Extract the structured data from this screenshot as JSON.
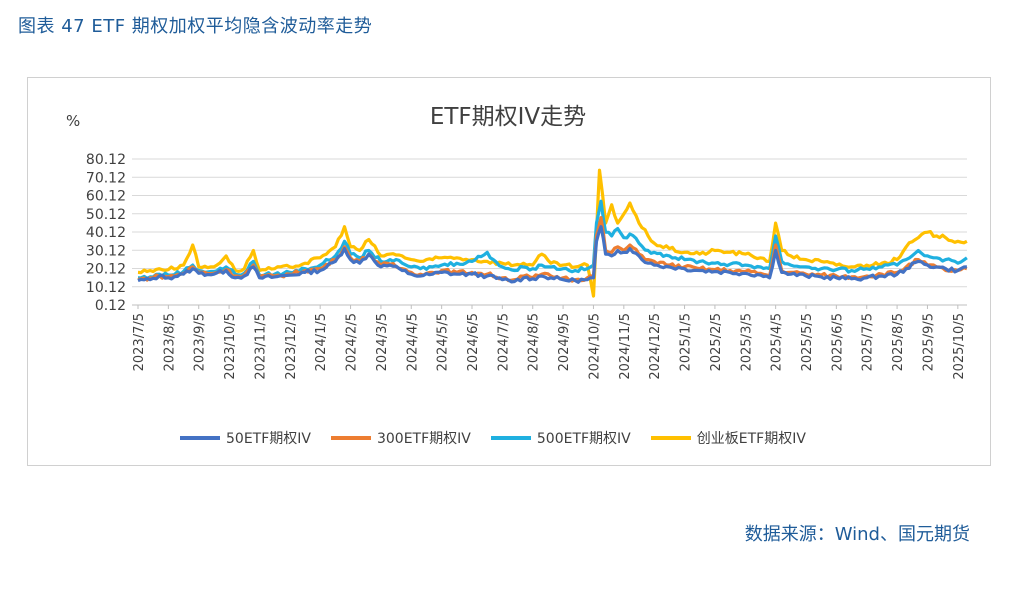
{
  "header": {
    "figure_title": "图表 47 ETF 期权加权平均隐含波动率走势"
  },
  "footer": {
    "source": "数据来源：Wind、国元期货"
  },
  "chart_data": {
    "type": "line",
    "title": "ETF期权IV走势",
    "ylabel": "%",
    "xlabel": "",
    "ylim": [
      0.12,
      80.12
    ],
    "yticks": [
      "80.12",
      "70.12",
      "60.12",
      "50.12",
      "40.12",
      "30.12",
      "20.12",
      "10.12",
      "0.12"
    ],
    "ytick_values": [
      80.12,
      70.12,
      60.12,
      50.12,
      40.12,
      30.12,
      20.12,
      10.12,
      0.12
    ],
    "categories": [
      "2023/7/5",
      "2023/8/5",
      "2023/9/5",
      "2023/10/5",
      "2023/11/5",
      "2023/12/5",
      "2024/1/5",
      "2024/2/5",
      "2024/3/5",
      "2024/4/5",
      "2024/5/5",
      "2024/6/5",
      "2024/7/5",
      "2024/8/5",
      "2024/9/5",
      "2024/10/5",
      "2024/11/5",
      "2024/12/5",
      "2025/1/5",
      "2025/2/5",
      "2025/3/5",
      "2025/4/5",
      "2025/5/5",
      "2025/6/5",
      "2025/7/5",
      "2025/8/5",
      "2025/9/5",
      "2025/10/5"
    ],
    "series": [
      {
        "name": "50ETF期权IV",
        "color": "#4472c4",
        "points": [
          [
            0,
            13.5
          ],
          [
            0.4,
            14
          ],
          [
            0.7,
            16
          ],
          [
            1,
            15
          ],
          [
            1.5,
            17
          ],
          [
            1.8,
            20
          ],
          [
            2,
            17.5
          ],
          [
            2.5,
            17
          ],
          [
            2.9,
            19
          ],
          [
            3.2,
            15
          ],
          [
            3.5,
            16
          ],
          [
            3.8,
            21
          ],
          [
            4,
            15
          ],
          [
            4.5,
            15.5
          ],
          [
            5,
            16.5
          ],
          [
            5.5,
            18
          ],
          [
            6,
            19
          ],
          [
            6.5,
            24
          ],
          [
            6.8,
            31
          ],
          [
            7,
            25
          ],
          [
            7.3,
            23
          ],
          [
            7.6,
            28
          ],
          [
            8,
            21
          ],
          [
            8.3,
            22
          ],
          [
            8.7,
            19
          ],
          [
            9,
            17
          ],
          [
            9.3,
            16
          ],
          [
            9.7,
            17
          ],
          [
            10,
            18
          ],
          [
            10.5,
            17
          ],
          [
            11,
            17
          ],
          [
            11.5,
            16
          ],
          [
            12,
            14
          ],
          [
            12.4,
            13
          ],
          [
            12.7,
            15
          ],
          [
            13,
            14.5
          ],
          [
            13.3,
            16
          ],
          [
            13.6,
            15
          ],
          [
            14,
            14
          ],
          [
            14.4,
            13.5
          ],
          [
            14.8,
            14
          ],
          [
            15,
            15
          ],
          [
            15.1,
            35
          ],
          [
            15.25,
            43
          ],
          [
            15.4,
            28
          ],
          [
            15.6,
            27
          ],
          [
            15.8,
            30
          ],
          [
            16,
            29
          ],
          [
            16.2,
            31
          ],
          [
            16.5,
            27
          ],
          [
            16.8,
            23
          ],
          [
            17,
            22
          ],
          [
            17.5,
            21
          ],
          [
            18,
            20
          ],
          [
            18.5,
            19
          ],
          [
            19,
            18.5
          ],
          [
            19.5,
            18
          ],
          [
            20,
            17.5
          ],
          [
            20.5,
            16.5
          ],
          [
            20.8,
            15
          ],
          [
            21,
            30
          ],
          [
            21.2,
            18
          ],
          [
            21.5,
            17
          ],
          [
            22,
            16
          ],
          [
            22.5,
            15.5
          ],
          [
            23,
            15
          ],
          [
            23.5,
            14.5
          ],
          [
            24,
            15
          ],
          [
            24.5,
            16
          ],
          [
            25,
            17
          ],
          [
            25.3,
            20
          ],
          [
            25.7,
            24
          ],
          [
            26,
            22
          ],
          [
            26.3,
            21
          ],
          [
            26.6,
            20
          ],
          [
            27,
            19
          ],
          [
            27.3,
            21
          ]
        ]
      },
      {
        "name": "300ETF期权IV",
        "color": "#ed7d31",
        "points": [
          [
            0,
            14
          ],
          [
            0.4,
            15
          ],
          [
            0.7,
            16
          ],
          [
            1,
            15.5
          ],
          [
            1.5,
            17.5
          ],
          [
            1.8,
            21
          ],
          [
            2,
            18
          ],
          [
            2.5,
            17.5
          ],
          [
            2.9,
            19.5
          ],
          [
            3.2,
            16
          ],
          [
            3.5,
            16.5
          ],
          [
            3.8,
            22
          ],
          [
            4,
            15.5
          ],
          [
            4.5,
            16
          ],
          [
            5,
            17
          ],
          [
            5.5,
            19
          ],
          [
            6,
            20
          ],
          [
            6.5,
            25
          ],
          [
            6.8,
            32
          ],
          [
            7,
            26
          ],
          [
            7.3,
            24
          ],
          [
            7.6,
            28
          ],
          [
            8,
            22
          ],
          [
            8.3,
            22.5
          ],
          [
            8.7,
            20
          ],
          [
            9,
            18
          ],
          [
            9.3,
            17
          ],
          [
            9.7,
            18
          ],
          [
            10,
            19
          ],
          [
            10.5,
            18
          ],
          [
            11,
            18
          ],
          [
            11.5,
            17
          ],
          [
            12,
            15
          ],
          [
            12.4,
            14
          ],
          [
            12.7,
            16
          ],
          [
            13,
            15
          ],
          [
            13.3,
            17
          ],
          [
            13.6,
            16
          ],
          [
            14,
            15
          ],
          [
            14.4,
            14
          ],
          [
            14.8,
            15
          ],
          [
            15,
            16
          ],
          [
            15.1,
            38
          ],
          [
            15.25,
            48
          ],
          [
            15.4,
            30
          ],
          [
            15.6,
            29
          ],
          [
            15.8,
            32
          ],
          [
            16,
            30
          ],
          [
            16.2,
            33
          ],
          [
            16.5,
            28
          ],
          [
            16.8,
            25
          ],
          [
            17,
            24
          ],
          [
            17.5,
            22
          ],
          [
            18,
            21
          ],
          [
            18.5,
            20
          ],
          [
            19,
            19.5
          ],
          [
            19.5,
            19
          ],
          [
            20,
            18.5
          ],
          [
            20.5,
            17.5
          ],
          [
            20.8,
            16
          ],
          [
            21,
            33
          ],
          [
            21.2,
            19
          ],
          [
            21.5,
            18
          ],
          [
            22,
            17
          ],
          [
            22.5,
            16.5
          ],
          [
            23,
            16
          ],
          [
            23.5,
            15.5
          ],
          [
            24,
            16
          ],
          [
            24.5,
            17
          ],
          [
            25,
            18
          ],
          [
            25.3,
            21
          ],
          [
            25.7,
            25
          ],
          [
            26,
            22
          ],
          [
            26.3,
            21
          ],
          [
            26.6,
            19
          ],
          [
            27,
            19
          ],
          [
            27.3,
            20
          ]
        ]
      },
      {
        "name": "500ETF期权IV",
        "color": "#1fb0e0",
        "points": [
          [
            0,
            15
          ],
          [
            0.4,
            15.5
          ],
          [
            0.7,
            17
          ],
          [
            1,
            16.5
          ],
          [
            1.5,
            18.5
          ],
          [
            1.8,
            22
          ],
          [
            2,
            19
          ],
          [
            2.5,
            18.5
          ],
          [
            2.9,
            21
          ],
          [
            3.2,
            17
          ],
          [
            3.5,
            17.5
          ],
          [
            3.8,
            24
          ],
          [
            4,
            16.5
          ],
          [
            4.5,
            17
          ],
          [
            5,
            18
          ],
          [
            5.5,
            20
          ],
          [
            6,
            22
          ],
          [
            6.5,
            27
          ],
          [
            6.8,
            35
          ],
          [
            7,
            28
          ],
          [
            7.3,
            26
          ],
          [
            7.6,
            30
          ],
          [
            8,
            24
          ],
          [
            8.3,
            25
          ],
          [
            8.7,
            23
          ],
          [
            9,
            21
          ],
          [
            9.3,
            20
          ],
          [
            9.7,
            21
          ],
          [
            10,
            22
          ],
          [
            10.5,
            23
          ],
          [
            11,
            24
          ],
          [
            11.5,
            29
          ],
          [
            11.7,
            25
          ],
          [
            12,
            21
          ],
          [
            12.4,
            19
          ],
          [
            12.7,
            21
          ],
          [
            13,
            20
          ],
          [
            13.3,
            22
          ],
          [
            13.6,
            21
          ],
          [
            14,
            20
          ],
          [
            14.4,
            19
          ],
          [
            14.8,
            20
          ],
          [
            15,
            22
          ],
          [
            15.1,
            45
          ],
          [
            15.25,
            57
          ],
          [
            15.4,
            40
          ],
          [
            15.6,
            38
          ],
          [
            15.8,
            42
          ],
          [
            16,
            37
          ],
          [
            16.2,
            39
          ],
          [
            16.5,
            34
          ],
          [
            16.8,
            30
          ],
          [
            17,
            29
          ],
          [
            17.5,
            27
          ],
          [
            18,
            25
          ],
          [
            18.5,
            24
          ],
          [
            19,
            23
          ],
          [
            19.5,
            22.5
          ],
          [
            20,
            22
          ],
          [
            20.5,
            21
          ],
          [
            20.8,
            20
          ],
          [
            21,
            38
          ],
          [
            21.2,
            24
          ],
          [
            21.5,
            22
          ],
          [
            22,
            21
          ],
          [
            22.5,
            20
          ],
          [
            23,
            19.5
          ],
          [
            23.5,
            19
          ],
          [
            24,
            20
          ],
          [
            24.5,
            21
          ],
          [
            25,
            22
          ],
          [
            25.3,
            25
          ],
          [
            25.7,
            30
          ],
          [
            26,
            27
          ],
          [
            26.3,
            26
          ],
          [
            26.6,
            25
          ],
          [
            27,
            23
          ],
          [
            27.3,
            26
          ]
        ]
      },
      {
        "name": "创业板ETF期权IV",
        "color": "#ffc000",
        "points": [
          [
            0,
            18
          ],
          [
            0.4,
            19
          ],
          [
            0.7,
            20
          ],
          [
            1,
            19.5
          ],
          [
            1.5,
            22
          ],
          [
            1.8,
            33
          ],
          [
            2,
            21
          ],
          [
            2.5,
            21
          ],
          [
            2.9,
            27
          ],
          [
            3.2,
            19
          ],
          [
            3.5,
            20
          ],
          [
            3.8,
            30
          ],
          [
            4,
            19
          ],
          [
            4.5,
            20
          ],
          [
            5,
            21
          ],
          [
            5.5,
            23
          ],
          [
            6,
            26
          ],
          [
            6.5,
            32
          ],
          [
            6.8,
            43
          ],
          [
            7,
            32
          ],
          [
            7.3,
            30
          ],
          [
            7.6,
            36
          ],
          [
            8,
            27
          ],
          [
            8.3,
            28
          ],
          [
            8.7,
            27
          ],
          [
            9,
            25
          ],
          [
            9.3,
            24
          ],
          [
            9.7,
            25
          ],
          [
            10,
            26
          ],
          [
            10.5,
            26
          ],
          [
            11,
            25
          ],
          [
            11.5,
            24
          ],
          [
            12,
            23
          ],
          [
            12.4,
            22
          ],
          [
            12.7,
            23
          ],
          [
            13,
            22
          ],
          [
            13.3,
            28
          ],
          [
            13.6,
            23
          ],
          [
            14,
            22
          ],
          [
            14.4,
            21
          ],
          [
            14.8,
            22
          ],
          [
            15,
            5
          ],
          [
            15.1,
            40
          ],
          [
            15.2,
            74
          ],
          [
            15.4,
            45
          ],
          [
            15.6,
            55
          ],
          [
            15.8,
            45
          ],
          [
            16,
            50
          ],
          [
            16.2,
            56
          ],
          [
            16.5,
            45
          ],
          [
            16.8,
            38
          ],
          [
            17,
            34
          ],
          [
            17.5,
            31
          ],
          [
            18,
            29
          ],
          [
            18.5,
            28
          ],
          [
            19,
            30
          ],
          [
            19.5,
            29
          ],
          [
            20,
            28
          ],
          [
            20.5,
            26
          ],
          [
            20.8,
            24
          ],
          [
            21,
            45
          ],
          [
            21.2,
            30
          ],
          [
            21.5,
            27
          ],
          [
            22,
            25
          ],
          [
            22.5,
            24
          ],
          [
            23,
            22
          ],
          [
            23.5,
            21
          ],
          [
            24,
            22
          ],
          [
            24.5,
            23
          ],
          [
            25,
            25
          ],
          [
            25.3,
            32
          ],
          [
            25.7,
            37
          ],
          [
            26,
            40
          ],
          [
            26.3,
            38
          ],
          [
            26.6,
            37
          ],
          [
            27,
            35
          ],
          [
            27.3,
            35
          ]
        ]
      }
    ],
    "legend": [
      "50ETF期权IV",
      "300ETF期权IV",
      "500ETF期权IV",
      "创业板ETF期权IV"
    ],
    "legend_position": "bottom"
  }
}
